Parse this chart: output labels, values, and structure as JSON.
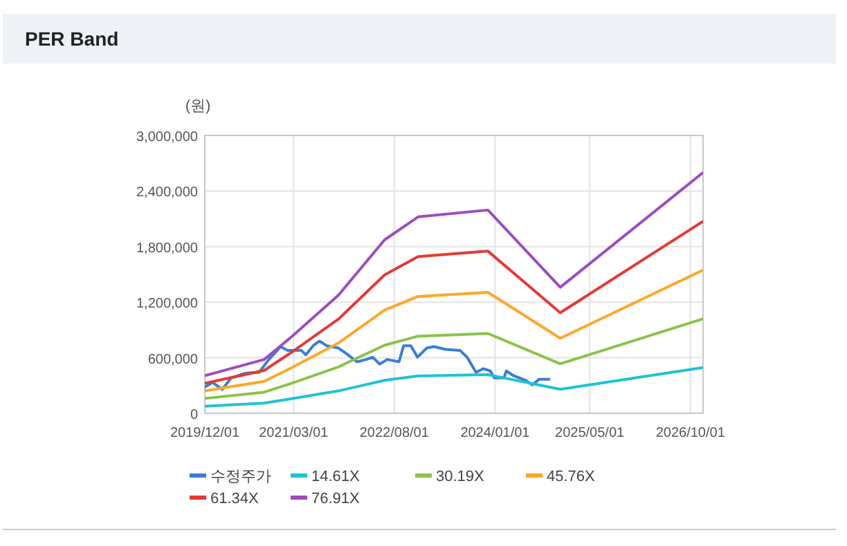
{
  "chart_data": {
    "type": "line",
    "title": "PER Band",
    "ylabel": "(원)",
    "xlim": [
      "2019-12-01",
      "2026-12-05"
    ],
    "xticks": [
      {
        "value": "2019-12-01",
        "label": "2019/12/01"
      },
      {
        "value": "2021-03-01",
        "label": "2021/03/01"
      },
      {
        "value": "2022-08-01",
        "label": "2022/08/01"
      },
      {
        "value": "2024-01-01",
        "label": "2024/01/01"
      },
      {
        "value": "2025-05-01",
        "label": "2025/05/01"
      },
      {
        "value": "2026-10-01",
        "label": "2026/10/01"
      }
    ],
    "ylim": [
      0,
      3000000
    ],
    "yticks": [
      0,
      {
        "value": 600000,
        "label": "600,000"
      },
      {
        "value": 1200000,
        "label": "1,200,000"
      },
      {
        "value": 1800000,
        "label": "1,800,000"
      },
      {
        "value": 2400000,
        "label": "2,400,000"
      },
      {
        "value": 3000000,
        "label": "3,000,000"
      }
    ],
    "grid": true,
    "legend": "bottom",
    "marker": "none",
    "line_style": "solid",
    "series": [
      {
        "name": "수정주가",
        "color": "#3b7dd8",
        "x": [
          "2019-12-01",
          "2020-01-10",
          "2020-02-28",
          "2020-04-15",
          "2020-06-25",
          "2020-09-05",
          "2020-10-25",
          "2020-12-25",
          "2021-01-28",
          "2021-04-10",
          "2021-05-03",
          "2021-06-10",
          "2021-07-12",
          "2021-08-18",
          "2021-10-18",
          "2021-12-06",
          "2022-01-21",
          "2022-03-10",
          "2022-04-12",
          "2022-05-18",
          "2022-06-25",
          "2022-08-25",
          "2022-09-18",
          "2022-10-25",
          "2022-11-28",
          "2023-01-15",
          "2023-02-21",
          "2023-04-21",
          "2023-07-04",
          "2023-08-10",
          "2023-09-25",
          "2023-11-01",
          "2023-12-07",
          "2023-12-28",
          "2024-02-15",
          "2024-02-28",
          "2024-04-04",
          "2024-06-04",
          "2024-07-10",
          "2024-08-15",
          "2024-10-04"
        ],
        "values": [
          283000,
          333000,
          258000,
          382000,
          432000,
          442000,
          581000,
          720000,
          680000,
          680000,
          631000,
          730000,
          780000,
          730000,
          705000,
          631000,
          556000,
          581000,
          606000,
          531000,
          581000,
          556000,
          730000,
          730000,
          606000,
          705000,
          720000,
          690000,
          680000,
          606000,
          442000,
          482000,
          457000,
          382000,
          382000,
          457000,
          407000,
          358000,
          308000,
          368000,
          368000
        ]
      },
      {
        "name": "14.61X",
        "color": "#1fc3d3",
        "x": [
          "2019-12-01",
          "2020-10-01",
          "2021-02-21",
          "2021-10-18",
          "2022-06-12",
          "2022-12-01",
          "2023-11-25",
          "2024-12-01",
          "2026-12-01"
        ],
        "values": [
          77000,
          110000,
          158000,
          242000,
          356000,
          403000,
          417000,
          259000,
          493000
        ]
      },
      {
        "name": "30.19X",
        "color": "#8bc34a",
        "x": [
          "2019-12-01",
          "2020-10-01",
          "2021-02-21",
          "2021-10-18",
          "2022-06-12",
          "2022-12-01",
          "2023-11-25",
          "2024-12-01",
          "2026-12-01"
        ],
        "values": [
          160000,
          228000,
          326000,
          501000,
          735000,
          833000,
          862000,
          534000,
          1018000
        ]
      },
      {
        "name": "45.76X",
        "color": "#ffa726",
        "x": [
          "2019-12-01",
          "2020-10-01",
          "2021-02-21",
          "2021-10-18",
          "2022-06-12",
          "2022-12-01",
          "2023-11-25",
          "2024-12-01",
          "2026-12-01"
        ],
        "values": [
          242000,
          345000,
          494000,
          759000,
          1114000,
          1262000,
          1306000,
          810000,
          1543000
        ]
      },
      {
        "name": "61.34X",
        "color": "#e53935",
        "x": [
          "2019-12-01",
          "2020-10-01",
          "2021-02-21",
          "2021-10-18",
          "2022-06-12",
          "2022-12-01",
          "2023-11-25",
          "2024-12-01",
          "2026-12-01"
        ],
        "values": [
          325000,
          463000,
          662000,
          1018000,
          1494000,
          1692000,
          1751000,
          1086000,
          2068000
        ]
      },
      {
        "name": "76.91X",
        "color": "#9c4dbf",
        "x": [
          "2019-12-01",
          "2020-10-01",
          "2021-02-21",
          "2021-10-18",
          "2022-06-12",
          "2022-12-01",
          "2023-11-25",
          "2024-12-01",
          "2026-12-01"
        ],
        "values": [
          407000,
          581000,
          830000,
          1276000,
          1873000,
          2121000,
          2195000,
          1361000,
          2593000
        ]
      }
    ]
  }
}
